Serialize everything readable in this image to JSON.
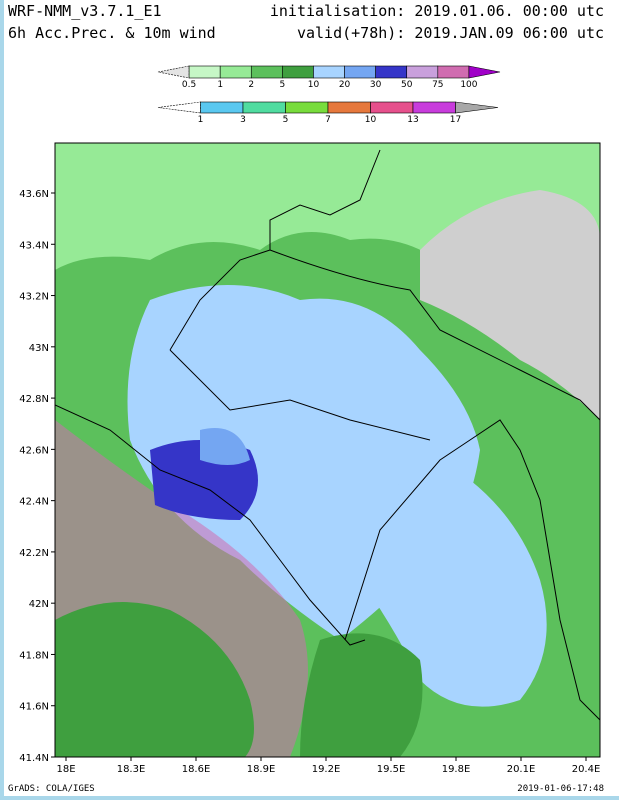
{
  "header": {
    "model": "WRF-NMM_v3.7.1_E1",
    "field": "6h Acc.Prec. & 10m wind",
    "init": "initialisation: 2019.01.06.  00:00 utc",
    "valid": "valid(+78h): 2019.JAN.09 06:00 utc"
  },
  "precip_legend": {
    "labels": [
      "0.5",
      "1",
      "2",
      "5",
      "10",
      "20",
      "30",
      "50",
      "75",
      "100"
    ],
    "colors": [
      "#e4e4e4",
      "#c6f7c6",
      "#96ea96",
      "#5cc05c",
      "#3f9f3f",
      "#a8d4ff",
      "#74a6f2",
      "#3535c8",
      "#c9a0dc",
      "#d06cb0",
      "#a000c8"
    ]
  },
  "wind_legend": {
    "labels": [
      "1",
      "3",
      "5",
      "7",
      "10",
      "13",
      "17"
    ],
    "colors": [
      "#ffffff",
      "#5ac8f0",
      "#50dca0",
      "#78dc3c",
      "#e6783c",
      "#e6508c",
      "#c83cdc",
      "#a8a8a8"
    ]
  },
  "map": {
    "lat_labels": [
      "43.6N",
      "43.4N",
      "43.2N",
      "43N",
      "42.8N",
      "42.6N",
      "42.4N",
      "42.2N",
      "42N",
      "41.8N",
      "41.6N",
      "41.4N"
    ],
    "lon_labels": [
      "18E",
      "18.3E",
      "18.6E",
      "18.9E",
      "19.2E",
      "19.5E",
      "19.8E",
      "20.1E",
      "20.4E"
    ]
  },
  "footer": {
    "left": "GrADS: COLA/IGES",
    "right": "2019-01-06-17:48"
  }
}
